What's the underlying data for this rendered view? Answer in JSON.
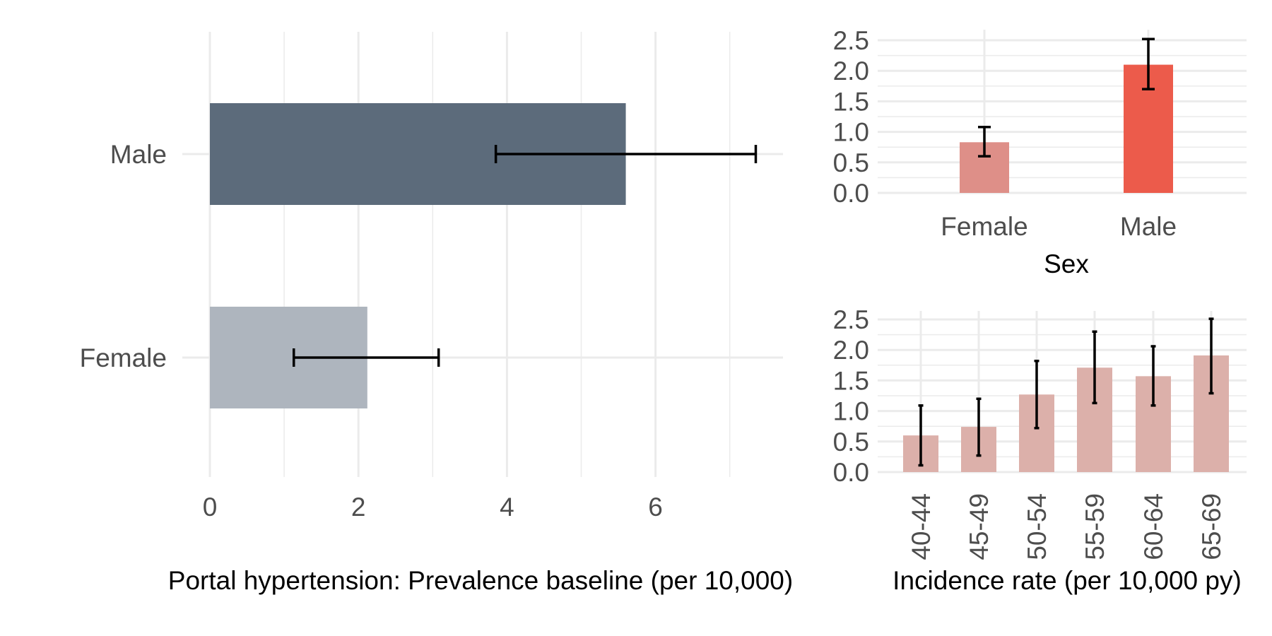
{
  "figure": {
    "caption_left": "Portal hypertension: Prevalence baseline (per 10,000)",
    "caption_right": "Incidence rate (per 10,000 py)"
  },
  "colors": {
    "male_prevalence": "#5c6b7b",
    "female_prevalence": "#aeb5be",
    "female_incidence": "#de8f88",
    "male_incidence": "#ec5b4b",
    "age_incidence": "#dcb0aa",
    "grid": "#ebebeb",
    "tick_text": "#4d4d4d",
    "error_bar": "#000000"
  },
  "chart_data": [
    {
      "id": "prevalence",
      "type": "bar",
      "orientation": "horizontal",
      "categories": [
        "Male",
        "Female"
      ],
      "values": [
        5.6,
        2.12
      ],
      "error_low": [
        3.85,
        1.13
      ],
      "error_high": [
        7.35,
        3.08
      ],
      "xlim": [
        0,
        7.7
      ],
      "xticks": [
        0,
        2,
        4,
        6
      ],
      "xlabel": "",
      "ylabel": "",
      "grid": true
    },
    {
      "id": "incidence_sex",
      "type": "bar",
      "categories": [
        "Female",
        "Male"
      ],
      "values": [
        0.83,
        2.1
      ],
      "error_low": [
        0.6,
        1.7
      ],
      "error_high": [
        1.08,
        2.52
      ],
      "ylim": [
        0,
        2.6
      ],
      "yticks": [
        "0.0",
        "0.5",
        "1.0",
        "1.5",
        "2.0",
        "2.5"
      ],
      "xlabel": "Sex",
      "ylabel": "",
      "grid": true
    },
    {
      "id": "incidence_age",
      "type": "bar",
      "categories": [
        "40-44",
        "45-49",
        "50-54",
        "55-59",
        "60-64",
        "65-69"
      ],
      "values": [
        0.6,
        0.74,
        1.27,
        1.71,
        1.57,
        1.91
      ],
      "error_low": [
        0.11,
        0.27,
        0.72,
        1.13,
        1.09,
        1.29
      ],
      "error_high": [
        1.09,
        1.2,
        1.82,
        2.3,
        2.06,
        2.51
      ],
      "ylim": [
        0,
        2.6
      ],
      "yticks": [
        "0.0",
        "0.5",
        "1.0",
        "1.5",
        "2.0",
        "2.5"
      ],
      "xlabel": "",
      "ylabel": "",
      "grid": true
    }
  ]
}
